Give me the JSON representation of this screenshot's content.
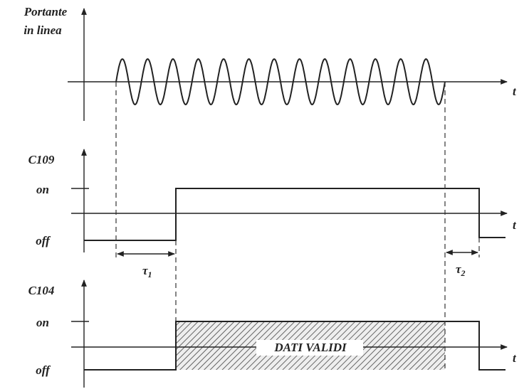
{
  "panels": [
    {
      "label": [
        "Portante",
        "in linea"
      ],
      "axis_label": "t"
    },
    {
      "label": "C109",
      "levels": [
        "on",
        "off"
      ],
      "axis_label": "t"
    },
    {
      "label": "C104",
      "levels": [
        "on",
        "off"
      ],
      "axis_label": "t"
    }
  ],
  "intervals": [
    {
      "symbol": "τ",
      "subscript": "1"
    },
    {
      "symbol": "τ",
      "subscript": "2"
    }
  ],
  "region_label": "DATI VALIDI"
}
